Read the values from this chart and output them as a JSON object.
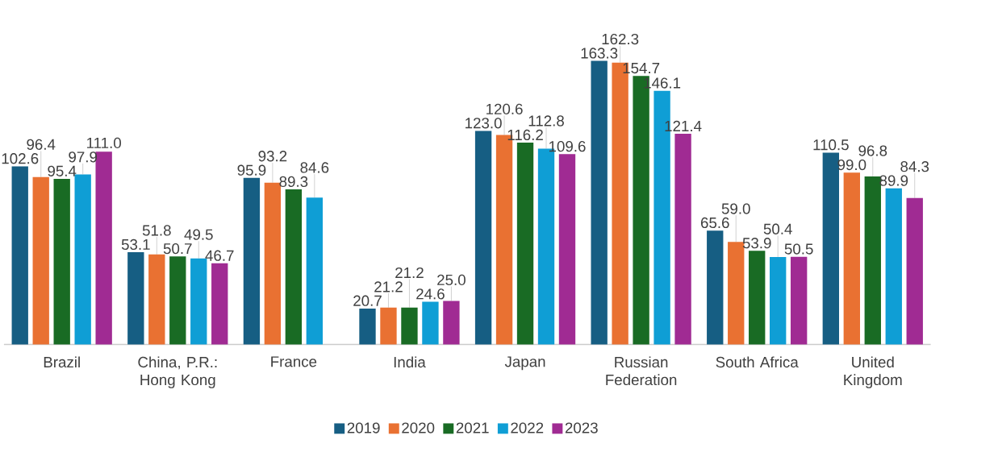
{
  "chart_data": {
    "type": "bar",
    "categories": [
      "Brazil",
      "China, P.R.: Hong Kong",
      "France",
      "India",
      "Japan",
      "Russian Federation",
      "South Africa",
      "United Kingdom"
    ],
    "series": [
      {
        "name": "2019",
        "color": "#165e83",
        "values": [
          102.6,
          53.1,
          95.9,
          20.7,
          123.0,
          163.3,
          65.6,
          110.5
        ],
        "value_labels": [
          "102.6",
          "53.1",
          "95.9",
          "20.7",
          "123.0",
          "163.3",
          "65.6",
          "110.5"
        ]
      },
      {
        "name": "2020",
        "color": "#e97132",
        "values": [
          96.4,
          51.8,
          93.2,
          21.2,
          120.6,
          162.3,
          59.0,
          99.0
        ],
        "value_labels": [
          "96.4",
          "51.8",
          "93.2",
          "21.2",
          "120.6",
          "162.3",
          "59.0",
          "99.0"
        ]
      },
      {
        "name": "2021",
        "color": "#196b24",
        "values": [
          95.4,
          50.7,
          89.3,
          21.2,
          116.2,
          154.7,
          53.9,
          96.8
        ],
        "value_labels": [
          "95.4",
          "50.7",
          "89.3",
          "21.2",
          "116.2",
          "154.7",
          "53.9",
          "96.8"
        ]
      },
      {
        "name": "2022",
        "color": "#0f9ed5",
        "values": [
          97.9,
          49.5,
          84.6,
          24.6,
          112.8,
          146.1,
          50.4,
          89.9
        ],
        "value_labels": [
          "97.9",
          "49.5",
          "84.6",
          "24.6",
          "112.8",
          "146.1",
          "50.4",
          "89.9"
        ]
      },
      {
        "name": "2023",
        "color": "#a02b93",
        "values": [
          111.0,
          46.7,
          null,
          25.0,
          109.6,
          121.4,
          50.5,
          84.3
        ],
        "value_labels": [
          "111.0",
          "46.7",
          null,
          "25.0",
          "109.6",
          "121.4",
          "50.5",
          "84.3"
        ]
      }
    ],
    "legend": "bottom"
  }
}
